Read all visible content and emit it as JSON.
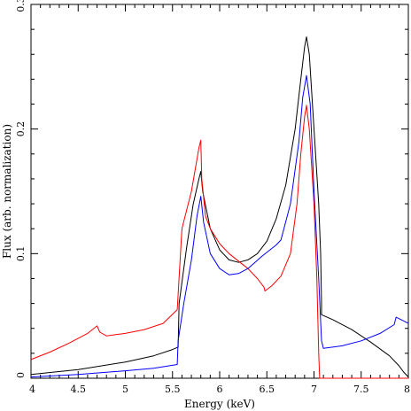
{
  "chart_data": {
    "type": "line",
    "xlabel": "Energy (keV)",
    "ylabel": "Flux (arb. normalization)",
    "xlim": [
      4,
      8
    ],
    "ylim": [
      0,
      0.3
    ],
    "x_ticks": [
      {
        "value": 4,
        "label": "4"
      },
      {
        "value": 4.5,
        "label": "4.5"
      },
      {
        "value": 5,
        "label": "5"
      },
      {
        "value": 5.5,
        "label": "5.5"
      },
      {
        "value": 6,
        "label": "6"
      },
      {
        "value": 6.5,
        "label": "6.5"
      },
      {
        "value": 7,
        "label": "7"
      },
      {
        "value": 7.5,
        "label": "7.5"
      },
      {
        "value": 8,
        "label": "8"
      }
    ],
    "y_ticks": [
      {
        "value": 0,
        "label": "0"
      },
      {
        "value": 0.1,
        "label": "0.1"
      },
      {
        "value": 0.2,
        "label": "0.2"
      },
      {
        "value": 0.3,
        "label": "0.3"
      }
    ],
    "grid": false,
    "series": [
      {
        "color": "#000000",
        "points": [
          [
            4.0,
            0.003
          ],
          [
            4.5,
            0.007
          ],
          [
            5.0,
            0.013
          ],
          [
            5.3,
            0.018
          ],
          [
            5.5,
            0.023
          ],
          [
            5.56,
            0.025
          ],
          [
            5.57,
            0.06
          ],
          [
            5.65,
            0.105
          ],
          [
            5.72,
            0.14
          ],
          [
            5.78,
            0.16
          ],
          [
            5.8,
            0.166
          ],
          [
            5.82,
            0.15
          ],
          [
            5.9,
            0.12
          ],
          [
            6.0,
            0.103
          ],
          [
            6.1,
            0.095
          ],
          [
            6.2,
            0.093
          ],
          [
            6.3,
            0.095
          ],
          [
            6.4,
            0.1
          ],
          [
            6.5,
            0.11
          ],
          [
            6.6,
            0.128
          ],
          [
            6.7,
            0.155
          ],
          [
            6.8,
            0.2
          ],
          [
            6.86,
            0.24
          ],
          [
            6.9,
            0.266
          ],
          [
            6.92,
            0.274
          ],
          [
            6.95,
            0.26
          ],
          [
            7.0,
            0.2
          ],
          [
            7.05,
            0.14
          ],
          [
            7.07,
            0.1
          ],
          [
            7.08,
            0.06
          ],
          [
            7.08,
            0.051
          ],
          [
            7.2,
            0.047
          ],
          [
            7.4,
            0.039
          ],
          [
            7.6,
            0.029
          ],
          [
            7.8,
            0.018
          ],
          [
            7.9,
            0.01
          ],
          [
            7.95,
            0.005
          ],
          [
            8.0,
            0.001
          ]
        ]
      },
      {
        "color": "#ff0000",
        "points": [
          [
            4.0,
            0.015
          ],
          [
            4.2,
            0.021
          ],
          [
            4.4,
            0.028
          ],
          [
            4.6,
            0.036
          ],
          [
            4.7,
            0.042
          ],
          [
            4.73,
            0.037
          ],
          [
            4.8,
            0.034
          ],
          [
            5.0,
            0.036
          ],
          [
            5.2,
            0.039
          ],
          [
            5.4,
            0.044
          ],
          [
            5.55,
            0.055
          ],
          [
            5.6,
            0.12
          ],
          [
            5.7,
            0.15
          ],
          [
            5.78,
            0.185
          ],
          [
            5.8,
            0.191
          ],
          [
            5.81,
            0.16
          ],
          [
            5.85,
            0.13
          ],
          [
            5.9,
            0.12
          ],
          [
            6.0,
            0.108
          ],
          [
            6.1,
            0.1
          ],
          [
            6.2,
            0.094
          ],
          [
            6.3,
            0.088
          ],
          [
            6.4,
            0.08
          ],
          [
            6.47,
            0.073
          ],
          [
            6.48,
            0.07
          ],
          [
            6.55,
            0.074
          ],
          [
            6.65,
            0.082
          ],
          [
            6.75,
            0.1
          ],
          [
            6.82,
            0.14
          ],
          [
            6.86,
            0.18
          ],
          [
            6.9,
            0.21
          ],
          [
            6.92,
            0.219
          ],
          [
            6.95,
            0.2
          ],
          [
            7.0,
            0.14
          ],
          [
            7.03,
            0.08
          ],
          [
            7.05,
            0.02
          ],
          [
            7.06,
            0.0
          ],
          [
            8.0,
            0.0
          ]
        ]
      },
      {
        "color": "#0000ff",
        "points": [
          [
            4.0,
            0.001
          ],
          [
            4.5,
            0.003
          ],
          [
            5.0,
            0.006
          ],
          [
            5.3,
            0.008
          ],
          [
            5.55,
            0.011
          ],
          [
            5.56,
            0.03
          ],
          [
            5.62,
            0.06
          ],
          [
            5.7,
            0.095
          ],
          [
            5.76,
            0.13
          ],
          [
            5.8,
            0.146
          ],
          [
            5.83,
            0.125
          ],
          [
            5.9,
            0.1
          ],
          [
            6.0,
            0.088
          ],
          [
            6.1,
            0.083
          ],
          [
            6.2,
            0.084
          ],
          [
            6.3,
            0.088
          ],
          [
            6.45,
            0.098
          ],
          [
            6.6,
            0.107
          ],
          [
            6.65,
            0.111
          ],
          [
            6.75,
            0.14
          ],
          [
            6.84,
            0.19
          ],
          [
            6.88,
            0.225
          ],
          [
            6.92,
            0.243
          ],
          [
            6.96,
            0.22
          ],
          [
            7.0,
            0.15
          ],
          [
            7.05,
            0.08
          ],
          [
            7.08,
            0.03
          ],
          [
            7.1,
            0.024
          ],
          [
            7.3,
            0.026
          ],
          [
            7.5,
            0.03
          ],
          [
            7.7,
            0.036
          ],
          [
            7.85,
            0.043
          ],
          [
            7.87,
            0.049
          ],
          [
            7.95,
            0.046
          ],
          [
            8.0,
            0.044
          ]
        ]
      }
    ]
  }
}
